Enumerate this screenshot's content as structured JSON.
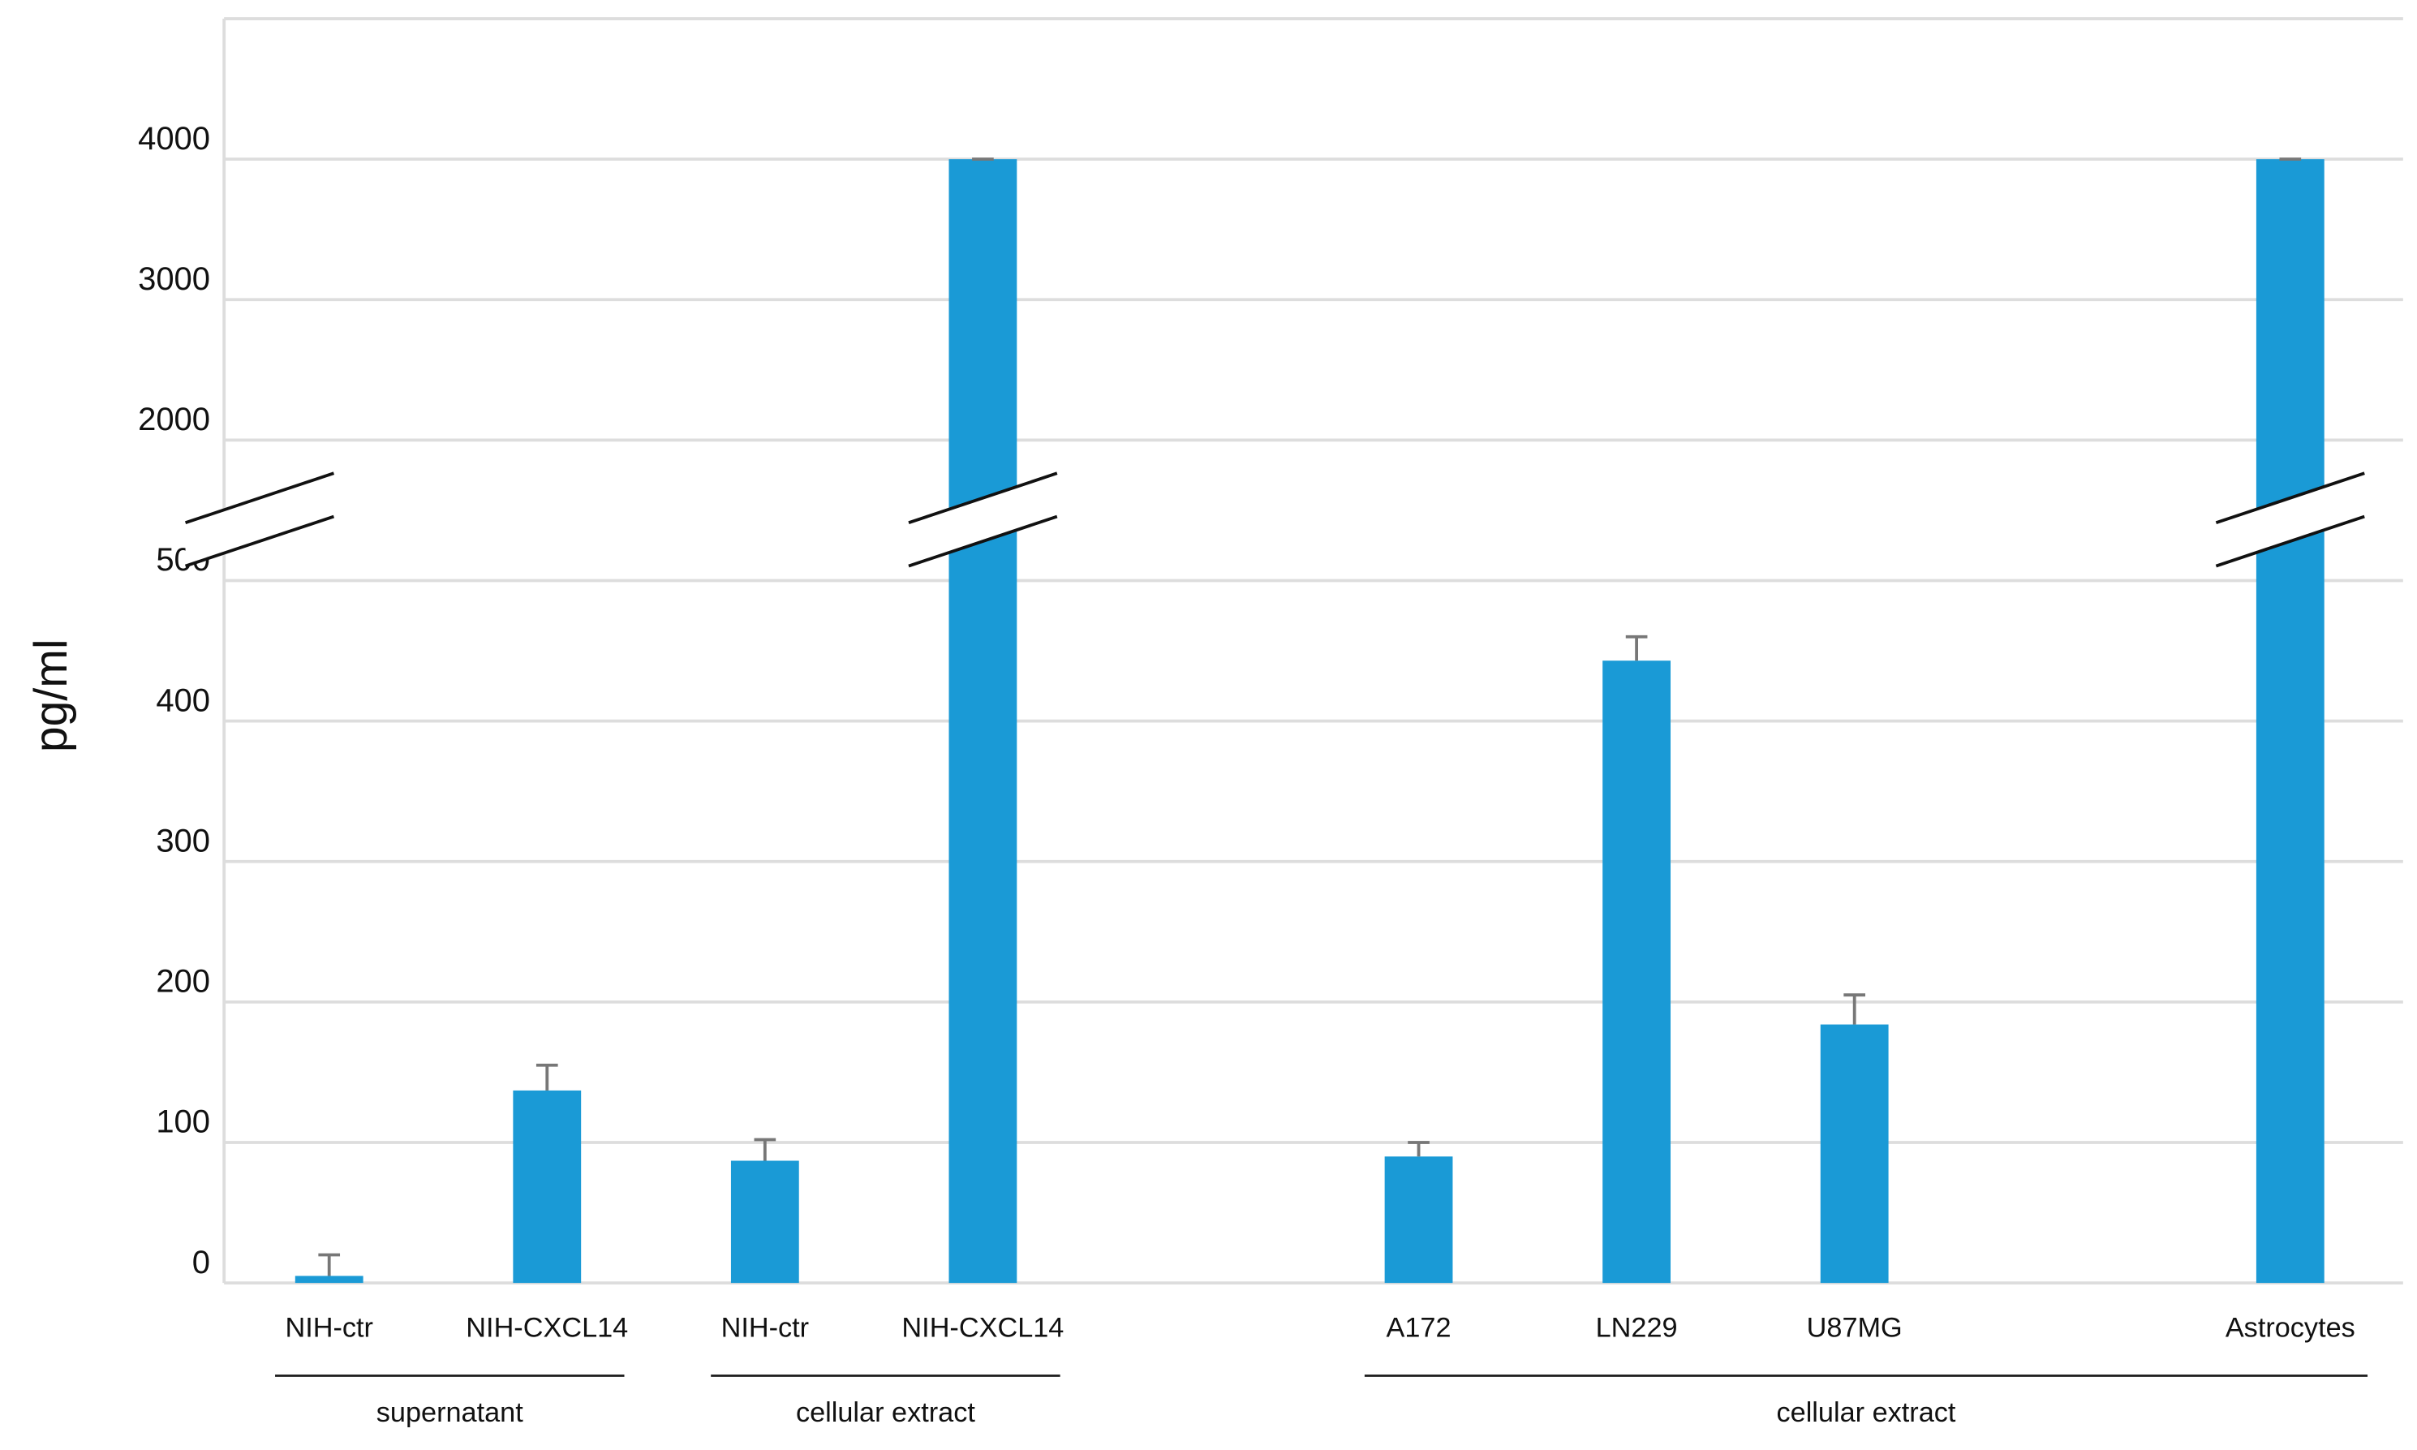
{
  "chart_data": {
    "type": "bar",
    "y_label": "pg/ml",
    "categories": [
      "NIH-ctr",
      "NIH-CXCL14",
      "NIH-ctr",
      "NIH-CXCL14",
      null,
      "A172",
      "LN229",
      "U87MG",
      null,
      "Astrocytes"
    ],
    "values": [
      5,
      137,
      87,
      4000,
      null,
      90,
      443,
      184,
      null,
      4000
    ],
    "errors": [
      15,
      18,
      15,
      0,
      null,
      10,
      17,
      21,
      null,
      0
    ],
    "color": "#1a9ad6",
    "ylim": [
      0,
      5000
    ],
    "yticks": [
      0,
      100,
      200,
      300,
      400,
      500,
      2000,
      3000,
      4000
    ],
    "axis_break": [
      500,
      2000
    ],
    "grid": true,
    "groups": [
      {
        "label": "supernatant",
        "from": 0,
        "to": 1
      },
      {
        "label": "cellular extract",
        "from": 2,
        "to": 3
      },
      {
        "label": "cellular extract",
        "from": 5,
        "to": 9
      }
    ]
  }
}
